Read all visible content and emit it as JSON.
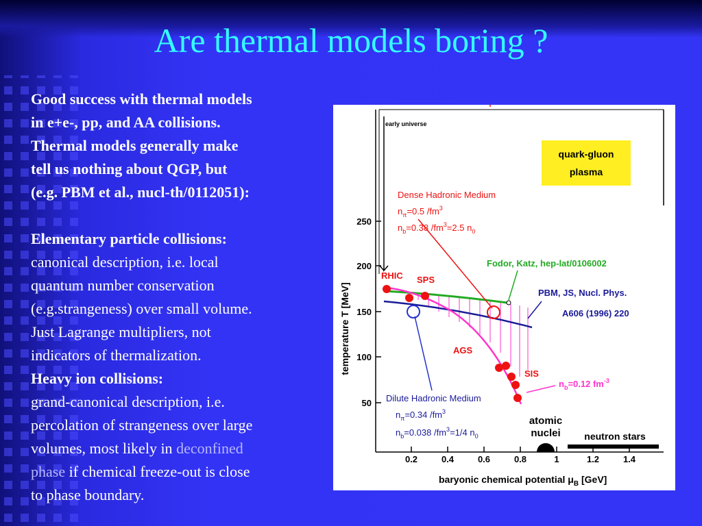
{
  "slide": {
    "title": "Are thermal models boring ?",
    "lines": [
      "Good success with thermal models",
      "in e+e-, pp, and AA collisions.",
      "Thermal models generally make",
      "tell us nothing about QGP, but",
      "(e.g. PBM et al., nucl-th/0112051):",
      "Elementary particle collisions:",
      "canonical description, i.e. local",
      "quantum number conservation",
      "(e.g.strangeness) over small volume.",
      "Just Lagrange multipliers, not",
      "indicators of thermalization.",
      "Heavy ion collisions:",
      "grand-canonical description, i.e.",
      "percolation of strangeness over large",
      [
        "volumes, most likely in ",
        "deconfined"
      ],
      [
        "phase",
        " if chemical freeze-out is close"
      ],
      "to phase boundary."
    ]
  },
  "figure": {
    "y_label": "temperature T [MeV]",
    "x_label": [
      "baryonic chemical potential ",
      "μ",
      "B",
      " [GeV]"
    ],
    "yticks": [
      "250",
      "200",
      "150",
      "100",
      "50"
    ],
    "xticks": [
      "0.2",
      "0.4",
      "0.6",
      "0.8",
      "1",
      "1.2",
      "1.4"
    ],
    "early_universe": "early universe",
    "qgp": [
      "quark-gluon",
      "plasma"
    ],
    "dense": {
      "title": "Dense Hadronic Medium",
      "n_pi": [
        "n",
        "π",
        "=0.5 /fm",
        "3"
      ],
      "n_b": [
        "n",
        "b",
        "=0.38 /fm",
        "3",
        "=2.5 n",
        "0"
      ]
    },
    "fodor": "Fodor, Katz, hep-lat/0106002",
    "pbm": [
      "PBM, JS, Nucl. Phys.",
      "A606 (1996) 220"
    ],
    "rhic": "RHIC",
    "sps": "SPS",
    "ags": "AGS",
    "sis": "SIS",
    "nb_freeze": [
      "n",
      "b",
      "=0.12 fm",
      "-3"
    ],
    "dilute": {
      "title": "Dilute Hadronic Medium",
      "n_pi": [
        "n",
        "π",
        "=0.34 /fm",
        "3"
      ],
      "n_b": [
        "n",
        "b",
        "=0.038 /fm",
        "3",
        "=1/4 n",
        "0"
      ]
    },
    "nuclei": [
      "atomic",
      "nuclei"
    ],
    "neutron_stars": "neutron stars"
  }
}
